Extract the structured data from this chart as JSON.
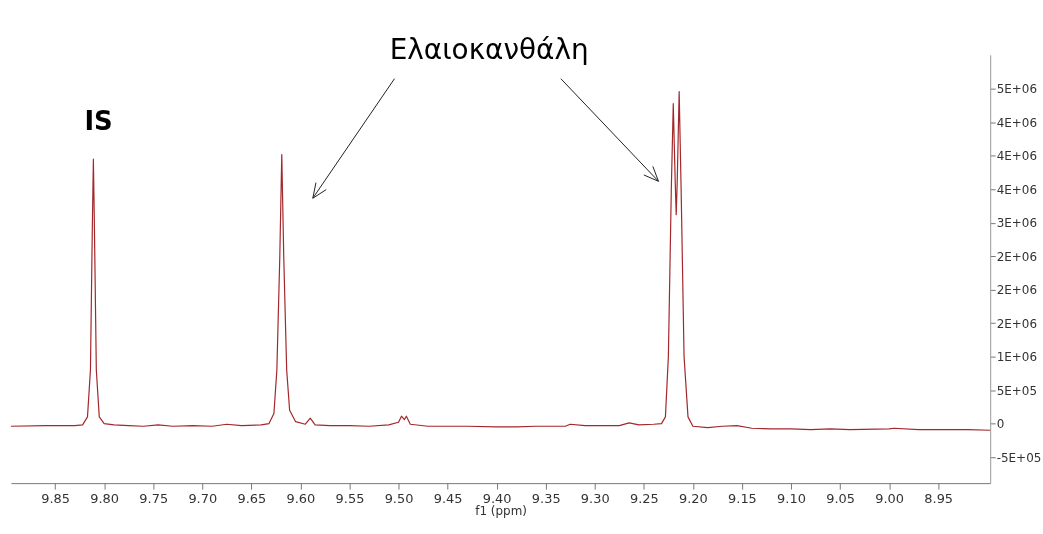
{
  "chart_data": {
    "type": "line",
    "xlabel": "f1 (ppm)",
    "xlim": [
      9.895,
      8.897
    ],
    "xticks": [
      9.85,
      {
        "value": 9.8,
        "label": "9.80"
      },
      9.75,
      {
        "value": 9.7,
        "label": "9.70"
      },
      9.65,
      {
        "value": 9.6,
        "label": "9.60"
      },
      9.55,
      {
        "value": 9.5,
        "label": "9.50"
      },
      9.45,
      {
        "value": 9.4,
        "label": "9.40"
      },
      9.35,
      {
        "value": 9.3,
        "label": "9.30"
      },
      9.25,
      {
        "value": 9.2,
        "label": "9.20"
      },
      9.15,
      {
        "value": 9.1,
        "label": "9.10"
      },
      9.05,
      {
        "value": 9,
        "label": "9.00"
      },
      8.95
    ],
    "ylim": [
      -890000,
      5510000
    ],
    "yticks": [
      {
        "value": -500000,
        "label": "-5E+05"
      },
      0,
      {
        "value": 500000,
        "label": "5E+05"
      },
      {
        "value": 1000000,
        "label": "1E+06"
      },
      {
        "value": 1500000,
        "label": "2E+06"
      },
      {
        "value": 2000000,
        "label": "2E+06"
      },
      {
        "value": 2500000,
        "label": "2E+06"
      },
      {
        "value": 3000000,
        "label": "3E+06"
      },
      {
        "value": 3500000,
        "label": "4E+06"
      },
      {
        "value": 4000000,
        "label": "4E+06"
      },
      {
        "value": 4500000,
        "label": "4E+06"
      },
      {
        "value": 5000000,
        "label": "5E+06"
      }
    ],
    "grid": false,
    "marker": "none",
    "line_style": "solid",
    "annotations": [
      "IS",
      "Ελαιοκανθάλη"
    ],
    "series": [
      {
        "color": "#a3282c",
        "x": [
          9.895,
          9.86,
          9.83,
          9.822,
          9.817,
          9.814,
          9.812,
          9.811,
          9.81,
          9.808,
          9.805,
          9.8,
          9.79,
          9.775,
          9.76,
          9.745,
          9.73,
          9.71,
          9.69,
          9.675,
          9.66,
          9.64,
          9.632,
          9.627,
          9.624,
          9.621,
          9.619,
          9.617,
          9.614,
          9.611,
          9.605,
          9.595,
          9.59,
          9.585,
          9.57,
          9.55,
          9.53,
          9.51,
          9.5,
          9.497,
          9.494,
          9.492,
          9.488,
          9.47,
          9.45,
          9.43,
          9.4,
          9.38,
          9.36,
          9.33,
          9.325,
          9.31,
          9.29,
          9.275,
          9.265,
          9.255,
          9.24,
          9.232,
          9.228,
          9.225,
          9.222,
          9.22,
          9.218,
          9.217,
          9.216,
          9.214,
          9.212,
          9.209,
          9.205,
          9.2,
          9.185,
          9.17,
          9.155,
          9.14,
          9.12,
          9.1,
          9.08,
          9.06,
          9.04,
          9.0,
          8.995,
          8.97,
          8.94,
          8.92,
          8.897
        ],
        "values": [
          -40000,
          -30000,
          -30000,
          -20000,
          100000,
          800000,
          3000000,
          3950000,
          3000000,
          800000,
          100000,
          0,
          -20000,
          -30000,
          -40000,
          -20000,
          -40000,
          -30000,
          -40000,
          -10000,
          -30000,
          -20000,
          0,
          150000,
          800000,
          2500000,
          4020000,
          2500000,
          800000,
          200000,
          30000,
          -10000,
          80000,
          -20000,
          -30000,
          -30000,
          -40000,
          -20000,
          20000,
          110000,
          60000,
          110000,
          -10000,
          -40000,
          -40000,
          -40000,
          -50000,
          -50000,
          -40000,
          -40000,
          -10000,
          -30000,
          -30000,
          -30000,
          10000,
          -20000,
          -10000,
          0,
          100000,
          1000000,
          3500000,
          4780000,
          3600000,
          3120000,
          3600000,
          4960000,
          3500000,
          1000000,
          100000,
          -40000,
          -60000,
          -40000,
          -30000,
          -70000,
          -80000,
          -80000,
          -90000,
          -80000,
          -90000,
          -80000,
          -70000,
          -90000,
          -90000,
          -90000,
          -100000
        ]
      }
    ]
  }
}
